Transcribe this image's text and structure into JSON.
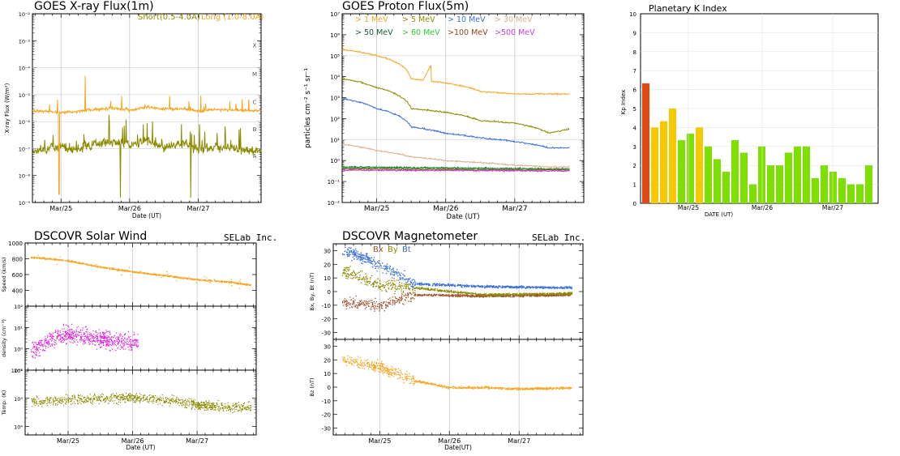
{
  "panels": {
    "xray": {
      "title": "GOES X-ray Flux(1m)",
      "legend_short": "Short(0.5-4.0A)",
      "legend_long": "Long (1.0-8.0A)",
      "ylabel": "X-ray Flux (W/m²)",
      "xlabel": "Date (UT)",
      "class_labels": [
        "X",
        "M",
        "C",
        "B",
        "A"
      ]
    },
    "proton": {
      "title": "GOES Proton Flux(5m)",
      "ylabel": "particles cm⁻² s⁻¹ sr⁻¹",
      "xlabel": "Date (UT)"
    },
    "kp": {
      "title": "Planetary K Index",
      "ylabel": "Kp Index",
      "xlabel": "DATE (UT)"
    },
    "wind": {
      "title": "DSCOVR Solar Wind",
      "brand": "SELab Inc.",
      "ylabels": [
        "Speed (km/s)",
        "density (cm⁻³)",
        "Temp. (K)"
      ],
      "xlabel": "Date (UT)"
    },
    "mag": {
      "title": "DSCOVR Magnetometer",
      "brand": "SELab Inc.",
      "legend": [
        "Bx",
        "By",
        "Bt"
      ],
      "ylabels": [
        "Bx, By, Bt (nT)",
        "Bz (nT)"
      ],
      "xlabel": "Date(UT)"
    }
  },
  "chart_data": [
    {
      "id": "xray",
      "type": "line",
      "title": "GOES X-ray Flux(1m)",
      "xlabel": "Date (UT)",
      "ylabel": "X-ray Flux (W/m²)",
      "x_ticks": [
        "Mar/25",
        "Mar/26",
        "Mar/27"
      ],
      "y_scale": "log",
      "ylim": [
        1e-09,
        0.01
      ],
      "y_ticks": [
        "10⁻²",
        "10⁻³",
        "10⁻⁴",
        "10⁻⁵",
        "10⁻⁶",
        "10⁻⁷",
        "10⁻⁸",
        "10⁻⁹"
      ],
      "series": [
        {
          "name": "Short(0.5-4.0A)",
          "color": "#8b8b00",
          "x": [
            "Mar/24 14:00",
            "Mar/25 00:00",
            "Mar/25 06:00",
            "Mar/25 12:00",
            "Mar/25 18:00",
            "Mar/26 00:00",
            "Mar/26 06:00",
            "Mar/26 12:00",
            "Mar/26 18:00",
            "Mar/27 00:00",
            "Mar/27 06:00",
            "Mar/27 12:00",
            "Mar/27 18:00"
          ],
          "values": [
            8e-08,
            1.2e-07,
            9e-08,
            1.5e-07,
            1.8e-07,
            1.3e-07,
            2e-07,
            1.1e-07,
            1.6e-07,
            9e-08,
            1.2e-07,
            1e-07,
            8e-08
          ]
        },
        {
          "name": "Long (1.0-8.0A)",
          "color": "#f5a623",
          "x": [
            "Mar/24 14:00",
            "Mar/25 00:00",
            "Mar/25 06:00",
            "Mar/25 12:00",
            "Mar/25 18:00",
            "Mar/26 00:00",
            "Mar/26 06:00",
            "Mar/26 12:00",
            "Mar/26 18:00",
            "Mar/27 00:00",
            "Mar/27 06:00",
            "Mar/27 12:00",
            "Mar/27 18:00"
          ],
          "values": [
            2.5e-06,
            2.2e-06,
            2.4e-06,
            2.8e-06,
            3.2e-06,
            2.6e-06,
            3.5e-06,
            2.9e-06,
            3e-06,
            2.5e-06,
            2.8e-06,
            2.7e-06,
            2.6e-06
          ]
        }
      ]
    },
    {
      "id": "proton",
      "type": "line",
      "title": "GOES Proton Flux(5m)",
      "xlabel": "Date (UT)",
      "ylabel": "particles cm⁻² s⁻¹ sr⁻¹",
      "x_ticks": [
        "Mar/25",
        "Mar/26",
        "Mar/27"
      ],
      "y_scale": "log",
      "ylim": [
        0.01,
        10000000
      ],
      "y_ticks": [
        "10⁷",
        "10⁶",
        "10⁵",
        "10⁴",
        "10³",
        "10²",
        "10¹",
        "10⁰",
        "10⁻¹",
        "10⁻²"
      ],
      "series": [
        {
          "name": "> 1 MeV",
          "color": "#f5a623",
          "x": [
            "Mar/24 12:00",
            "Mar/25 00:00",
            "Mar/25 12:00",
            "Mar/26 00:00",
            "Mar/26 12:00",
            "Mar/27 00:00",
            "Mar/27 12:00"
          ],
          "values": [
            200000,
            100000,
            8000,
            5000,
            2000,
            1500,
            1500
          ]
        },
        {
          "name": "> 5 MeV",
          "color": "#8b8b00",
          "x": [
            "Mar/24 12:00",
            "Mar/25 00:00",
            "Mar/25 12:00",
            "Mar/26 00:00",
            "Mar/26 12:00",
            "Mar/27 00:00",
            "Mar/27 12:00"
          ],
          "values": [
            8000,
            3000,
            300,
            200,
            80,
            60,
            20
          ]
        },
        {
          "name": "> 10 MeV",
          "color": "#3a6fd8",
          "x": [
            "Mar/24 12:00",
            "Mar/25 00:00",
            "Mar/25 12:00",
            "Mar/26 00:00",
            "Mar/26 12:00",
            "Mar/27 00:00",
            "Mar/27 12:00"
          ],
          "values": [
            900,
            300,
            40,
            20,
            12,
            8,
            4
          ]
        },
        {
          "name": "> 30 MeV",
          "color": "#d8b08a",
          "x": [
            "Mar/24 12:00",
            "Mar/25 00:00",
            "Mar/25 12:00",
            "Mar/26 00:00",
            "Mar/26 12:00",
            "Mar/27 00:00",
            "Mar/27 12:00"
          ],
          "values": [
            6,
            3,
            1.5,
            1,
            0.8,
            0.6,
            0.5
          ]
        },
        {
          "name": "> 50 MeV",
          "color": "#1a5a3a",
          "x": [
            "Mar/24 12:00",
            "Mar/27 12:00"
          ],
          "values": [
            0.5,
            0.4
          ]
        },
        {
          "name": "> 60 MeV",
          "color": "#2ecc2e",
          "x": [
            "Mar/24 12:00",
            "Mar/27 12:00"
          ],
          "values": [
            0.45,
            0.38
          ]
        },
        {
          "name": ">100 MeV",
          "color": "#a04020",
          "x": [
            "Mar/24 12:00",
            "Mar/27 12:00"
          ],
          "values": [
            0.4,
            0.35
          ]
        },
        {
          "name": ">500 MeV",
          "color": "#c040e0",
          "x": [
            "Mar/24 12:00",
            "Mar/27 12:00"
          ],
          "values": [
            0.35,
            0.32
          ]
        }
      ]
    },
    {
      "id": "kp",
      "type": "bar",
      "title": "Planetary K Index",
      "xlabel": "DATE (UT)",
      "ylabel": "Kp Index",
      "x_ticks": [
        "Mar/25",
        "Mar/26",
        "Mar/27"
      ],
      "ylim": [
        0,
        10
      ],
      "y_ticks": [
        0,
        1,
        2,
        3,
        4,
        5,
        6,
        7,
        8,
        9,
        10
      ],
      "values": [
        6.33,
        4.0,
        4.33,
        5.0,
        3.33,
        3.67,
        4.0,
        3.0,
        2.33,
        1.67,
        3.33,
        2.67,
        1.0,
        3.0,
        2.0,
        2.0,
        2.67,
        3.0,
        3.0,
        1.33,
        2.0,
        1.67,
        1.33,
        1.0,
        1.0,
        2.0
      ],
      "colors": {
        "quiet": "#7ee000",
        "active": "#f5c800",
        "storm": "#e04a10"
      }
    },
    {
      "id": "wind",
      "type": "scatter",
      "title": "DSCOVR Solar Wind",
      "xlabel": "Date (UT)",
      "x_ticks": [
        "Mar/25",
        "Mar/26",
        "Mar/27"
      ],
      "subplots": [
        {
          "ylabel": "Speed (km/s)",
          "ylim": [
            200,
            1000
          ],
          "y_ticks": [
            400,
            600,
            800,
            1000
          ],
          "color": "#f5a623",
          "x": [
            "Mar/24 12:00",
            "Mar/25 00:00",
            "Mar/25 12:00",
            "Mar/26 00:00",
            "Mar/26 12:00",
            "Mar/27 00:00",
            "Mar/27 12:00",
            "Mar/27 20:00"
          ],
          "values": [
            820,
            780,
            700,
            640,
            590,
            540,
            510,
            470
          ]
        },
        {
          "ylabel": "density (cm⁻³)",
          "y_scale": "log",
          "ylim": [
            0.1,
            100
          ],
          "y_ticks": [
            "10²",
            "10¹",
            "10⁰",
            "10⁻¹"
          ],
          "color": "#e020e0",
          "x": [
            "Mar/24 12:00",
            "Mar/25 00:00",
            "Mar/25 12:00",
            "Mar/26 00:00"
          ],
          "values": [
            1,
            5,
            3,
            2
          ]
        },
        {
          "ylabel": "Temp. (K)",
          "y_scale": "log",
          "ylim": [
            5000,
            1000000
          ],
          "y_ticks": [
            "10⁶",
            "10⁵",
            "10⁴"
          ],
          "color": "#8b8b00",
          "x": [
            "Mar/24 12:00",
            "Mar/25 00:00",
            "Mar/25 12:00",
            "Mar/26 00:00",
            "Mar/26 12:00",
            "Mar/27 00:00",
            "Mar/27 12:00"
          ],
          "values": [
            80000,
            90000,
            100000,
            110000,
            90000,
            60000,
            50000
          ]
        }
      ]
    },
    {
      "id": "mag",
      "type": "scatter",
      "title": "DSCOVR Magnetometer",
      "xlabel": "Date(UT)",
      "x_ticks": [
        "Mar/25",
        "Mar/26",
        "Mar/27"
      ],
      "subplots": [
        {
          "ylabel": "Bx, By, Bt (nT)",
          "ylim": [
            -35,
            35
          ],
          "y_ticks": [
            30,
            20,
            10,
            0,
            -10,
            -20,
            -30
          ],
          "series": [
            {
              "name": "Bx",
              "color": "#a0522d",
              "x": [
                "Mar/24 12:00",
                "Mar/25 00:00",
                "Mar/25 12:00",
                "Mar/26 12:00",
                "Mar/27 20:00"
              ],
              "values": [
                -8,
                -10,
                -2,
                -3,
                -2
              ]
            },
            {
              "name": "By",
              "color": "#8b8b00",
              "x": [
                "Mar/24 12:00",
                "Mar/25 00:00",
                "Mar/25 12:00",
                "Mar/26 12:00",
                "Mar/27 20:00"
              ],
              "values": [
                15,
                5,
                3,
                -2,
                -1
              ]
            },
            {
              "name": "Bt",
              "color": "#3a6fd8",
              "x": [
                "Mar/24 12:00",
                "Mar/25 00:00",
                "Mar/25 12:00",
                "Mar/26 12:00",
                "Mar/27 20:00"
              ],
              "values": [
                30,
                20,
                6,
                4,
                3
              ]
            }
          ]
        },
        {
          "ylabel": "Bz (nT)",
          "ylim": [
            -35,
            35
          ],
          "y_ticks": [
            30,
            20,
            10,
            0,
            -10,
            -20,
            -30
          ],
          "color": "#f5a623",
          "x": [
            "Mar/24 12:00",
            "Mar/25 00:00",
            "Mar/25 12:00",
            "Mar/26 00:00",
            "Mar/26 12:00",
            "Mar/27 00:00",
            "Mar/27 20:00"
          ],
          "values": [
            20,
            15,
            5,
            0,
            0,
            -1,
            0
          ]
        }
      ]
    }
  ]
}
